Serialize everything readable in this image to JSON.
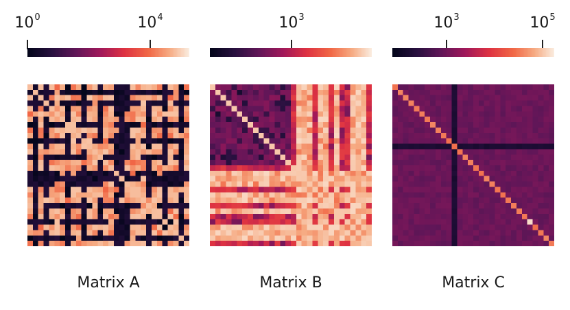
{
  "chart_data": [
    {
      "type": "heatmap",
      "title": "Matrix A",
      "n": 30,
      "colorbar": {
        "scale": "log",
        "range": [
          1,
          50000
        ],
        "ticks": [
          {
            "base": "10",
            "exp": "0",
            "value": 1
          },
          {
            "base": "10",
            "exp": "4",
            "value": 10000
          }
        ]
      },
      "pattern": "block-structured with alternating dark rows/columns and bright orange blocks",
      "value_range": [
        1,
        30000
      ]
    },
    {
      "type": "heatmap",
      "title": "Matrix B",
      "n": 30,
      "colorbar": {
        "scale": "log",
        "range": [
          20,
          50000
        ],
        "ticks": [
          {
            "base": "10",
            "exp": "3",
            "value": 1000
          }
        ]
      },
      "pattern": "two diagonal blocks; upper-left dark purple/magenta, lower-right bright with off-diagonal bands",
      "value_range": [
        30,
        40000
      ]
    },
    {
      "type": "heatmap",
      "title": "Matrix C",
      "n": 30,
      "colorbar": {
        "scale": "log",
        "range": [
          30,
          150000
        ],
        "ticks": [
          {
            "base": "10",
            "exp": "3",
            "value": 1000
          },
          {
            "base": "10",
            "exp": "5",
            "value": 100000
          }
        ]
      },
      "pattern": "uniform purple background, bright diagonal, one dark row and column near index 11",
      "value_range": [
        60,
        120000
      ]
    }
  ]
}
